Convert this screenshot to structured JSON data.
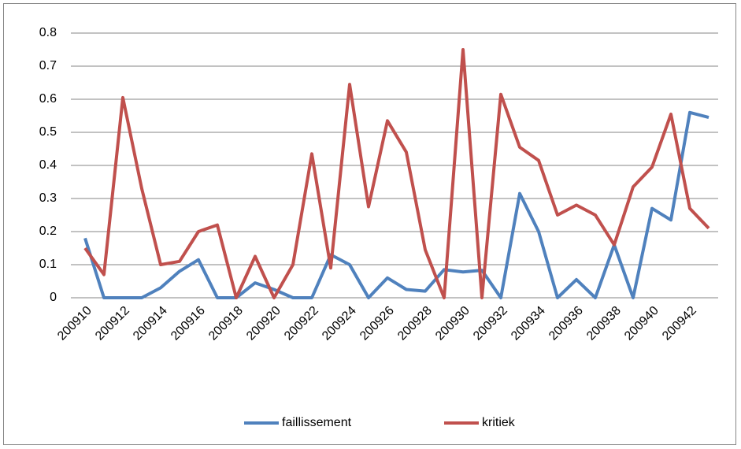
{
  "chart_data": {
    "type": "line",
    "categories": [
      "200910",
      null,
      "200912",
      null,
      "200914",
      null,
      "200916",
      null,
      "200918",
      null,
      "200920",
      null,
      "200922",
      null,
      "200924",
      null,
      "200926",
      null,
      "200928",
      null,
      "200930",
      null,
      "200932",
      null,
      "200934",
      null,
      "200936",
      null,
      "200938",
      null,
      "200940",
      null,
      "200942",
      null
    ],
    "series": [
      {
        "name": "faillissement",
        "color": "#4f81bd",
        "values": [
          0.18,
          0,
          0,
          0,
          0.03,
          0.08,
          0.115,
          0,
          0,
          0.045,
          0.025,
          0,
          0,
          0.13,
          0.1,
          0,
          0.06,
          0.025,
          0.02,
          0.085,
          0.078,
          0.083,
          0,
          0.315,
          0.2,
          0,
          0.055,
          0,
          0.16,
          0,
          0.27,
          0.235,
          0.56,
          0.545
        ]
      },
      {
        "name": "kritiek",
        "color": "#c0504d",
        "values": [
          0.15,
          0.07,
          0.605,
          0.33,
          0.1,
          0.11,
          0.2,
          0.22,
          0,
          0.125,
          0,
          0.1,
          0.435,
          0.09,
          0.645,
          0.275,
          0.535,
          0.44,
          0.145,
          0,
          0.75,
          0,
          0.615,
          0.455,
          0.415,
          0.25,
          0.28,
          0.25,
          0.16,
          0.335,
          0.395,
          0.555,
          0.27,
          0.21
        ]
      }
    ],
    "ylim": [
      0,
      0.8
    ],
    "yticks": [
      0,
      0.1,
      0.2,
      0.3,
      0.4,
      0.5,
      0.6,
      0.7,
      0.8
    ],
    "grid": true,
    "legend": "bottom"
  }
}
